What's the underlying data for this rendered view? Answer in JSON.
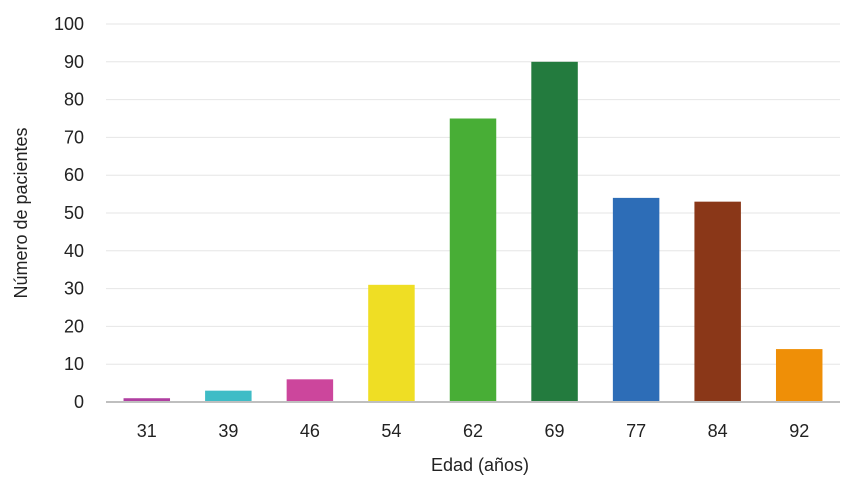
{
  "chart_data": {
    "type": "bar",
    "categories": [
      "31",
      "39",
      "46",
      "54",
      "62",
      "69",
      "77",
      "84",
      "92"
    ],
    "values": [
      1,
      3,
      6,
      31,
      75,
      90,
      54,
      53,
      14
    ],
    "colors": [
      "#b03fa1",
      "#3fbcc6",
      "#cc469c",
      "#efde24",
      "#48ae36",
      "#237b3e",
      "#2d6db7",
      "#8a3718",
      "#ef8f07"
    ],
    "title": "",
    "xlabel": "Edad (años)",
    "ylabel": "Número de pacientes",
    "ylim": [
      0,
      100
    ],
    "yticks": [
      "0",
      "10",
      "20",
      "30",
      "40",
      "50",
      "60",
      "70",
      "80",
      "90",
      "100"
    ],
    "grid": true,
    "legend": "none"
  }
}
